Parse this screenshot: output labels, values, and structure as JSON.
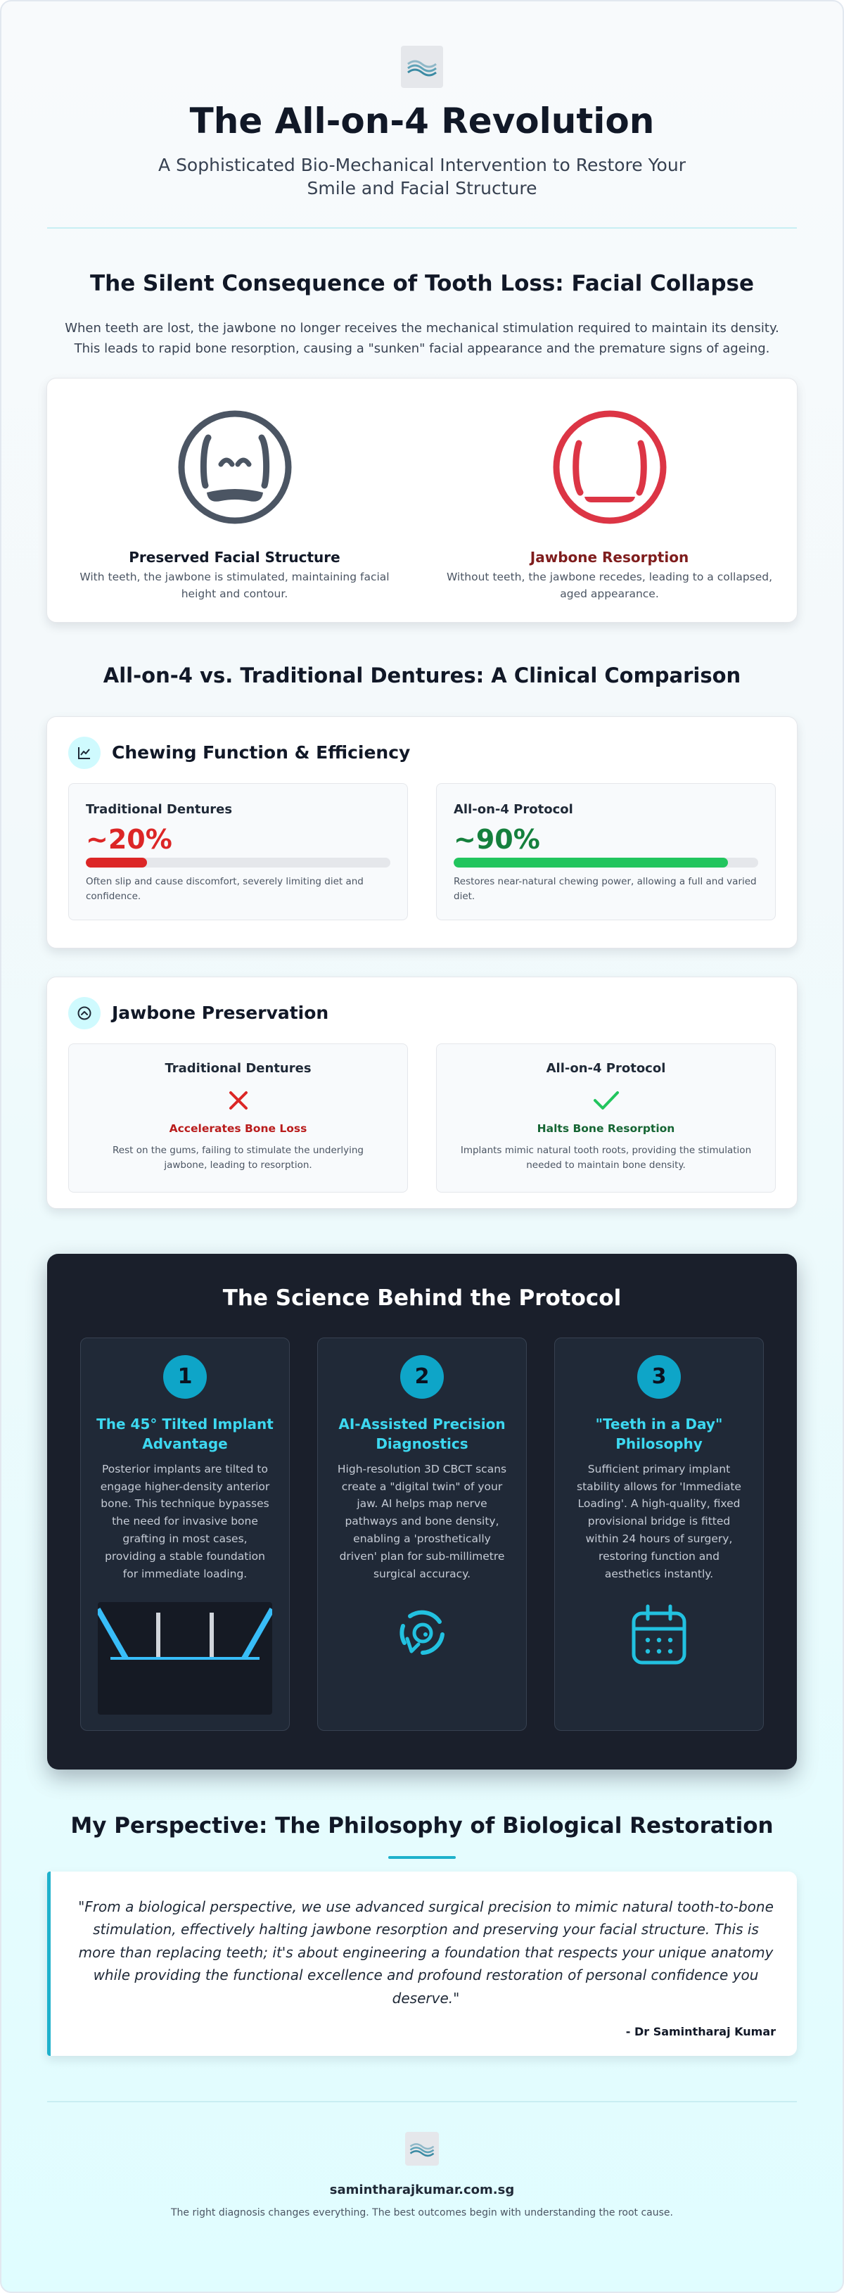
{
  "header": {
    "logo_icon": "wave-logo-icon",
    "title": "The All-on-4 Revolution",
    "subtitle": "A Sophisticated Bio-Mechanical Intervention to Restore Your Smile and Facial Structure"
  },
  "facial_collapse": {
    "heading": "The Silent Consequence of Tooth Loss: Facial Collapse",
    "description": "When teeth are lost, the jawbone no longer receives the mechanical stimulation required to maintain its density. This leads to rapid bone resorption, causing a \"sunken\" facial appearance and the premature signs of ageing.",
    "preserved": {
      "icon": "smiling-face-icon",
      "label": "Preserved Facial Structure",
      "description": "With teeth, the jawbone is stimulated, maintaining facial height and contour."
    },
    "resorption": {
      "icon": "collapsed-face-icon",
      "label": "Jawbone Resorption",
      "description": "Without teeth, the jawbone recedes, leading to a collapsed, aged appearance."
    }
  },
  "comparison": {
    "heading": "All-on-4 vs. Traditional Dentures: A Clinical Comparison",
    "chewing": {
      "icon": "line-chart-icon",
      "title": "Chewing Function & Efficiency",
      "traditional": {
        "label": "Traditional Dentures",
        "value": "~20%",
        "fill_percent": 20,
        "description": "Often slip and cause discomfort, severely limiting diet and confidence."
      },
      "allon4": {
        "label": "All-on-4 Protocol",
        "value": "~90%",
        "fill_percent": 90,
        "description": "Restores near-natural chewing power, allowing a full and varied diet."
      }
    },
    "jawbone": {
      "icon": "chevron-up-circle-icon",
      "title": "Jawbone Preservation",
      "traditional": {
        "label": "Traditional Dentures",
        "icon": "cross-icon",
        "status": "Accelerates Bone Loss",
        "description": "Rest on the gums, failing to stimulate the underlying jawbone, leading to resorption."
      },
      "allon4": {
        "label": "All-on-4 Protocol",
        "icon": "check-icon",
        "status": "Halts Bone Resorption",
        "description": "Implants mimic natural tooth roots, providing the stimulation needed to maintain bone density."
      }
    }
  },
  "science": {
    "heading": "The Science Behind the Protocol",
    "steps": [
      {
        "number": "1",
        "title": "The 45° Tilted Implant Advantage",
        "text": "Posterior implants are tilted to engage higher-density anterior bone. This technique bypasses the need for invasive bone grafting in most cases, providing a stable foundation for immediate loading.",
        "icon": "tilted-implants-diagram"
      },
      {
        "number": "2",
        "title": "AI-Assisted Precision Diagnostics",
        "text": "High-resolution 3D CBCT scans create a \"digital twin\" of your jaw. AI helps map nerve pathways and bone density, enabling a 'prosthetically driven' plan for sub-millimetre surgical accuracy.",
        "icon": "scan-target-icon"
      },
      {
        "number": "3",
        "title": "\"Teeth in a Day\" Philosophy",
        "text": "Sufficient primary implant stability allows for 'Immediate Loading'. A high-quality, fixed provisional bridge is fitted within 24 hours of surgery, restoring function and aesthetics instantly.",
        "icon": "calendar-icon"
      }
    ]
  },
  "perspective": {
    "heading": "My Perspective: The Philosophy of Biological Restoration",
    "quote": "\"From a biological perspective, we use advanced surgical precision to mimic natural tooth-to-bone stimulation, effectively halting jawbone resorption and preserving your facial structure. This is more than replacing teeth; it's about engineering a foundation that respects your unique anatomy while providing the functional excellence and profound restoration of personal confidence you deserve.\"",
    "author": "- Dr Samintharaj Kumar"
  },
  "footer": {
    "logo_icon": "wave-logo-icon",
    "website": "samintharajkumar.com.sg",
    "tagline": "The right diagnosis changes everything. The best outcomes begin with understanding the root cause."
  },
  "colors": {
    "accent": "#1fb1cc",
    "danger": "#dc2626",
    "success": "#22c55e",
    "dark_bg": "#1a1f2b"
  }
}
